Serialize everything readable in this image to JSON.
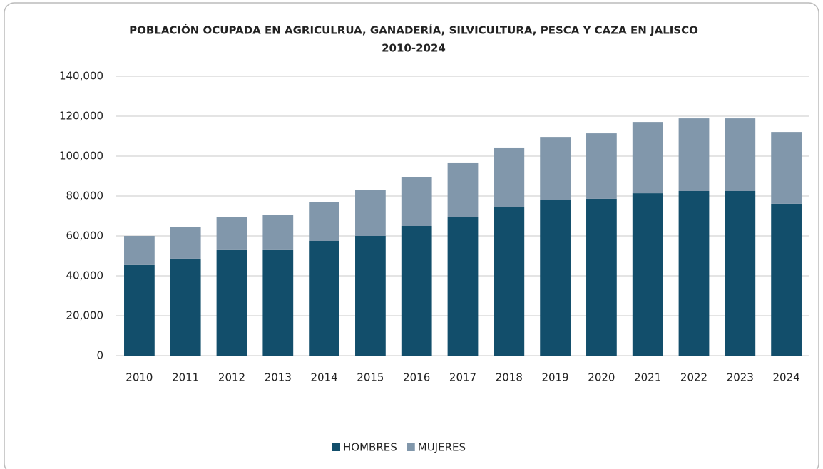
{
  "chart_data": {
    "type": "stacked_bar",
    "title": "POBLACIÓN OCUPADA EN AGRICULRUA, GANADERÍA, SILVICULTURA, PESCA Y CAZA EN JALISCO",
    "subtitle": "2010-2024",
    "categories": [
      "2010",
      "2011",
      "2012",
      "2013",
      "2014",
      "2015",
      "2016",
      "2017",
      "2018",
      "2019",
      "2020",
      "2021",
      "2022",
      "2023",
      "2024"
    ],
    "series": [
      {
        "name": "HOMBRES",
        "color": "#124e6b",
        "values": [
          45400,
          48600,
          52900,
          52900,
          57500,
          60000,
          65000,
          69300,
          74600,
          77900,
          78600,
          81400,
          82500,
          82500,
          76100
        ]
      },
      {
        "name": "MUJERES",
        "color": "#8197ab",
        "values": [
          14600,
          15700,
          16400,
          17800,
          19600,
          22900,
          24600,
          27500,
          29700,
          31700,
          32800,
          35700,
          36400,
          36400,
          36000
        ]
      }
    ],
    "ylim": [
      0,
      140000
    ],
    "yticks": [
      0,
      {
        "value": 20000,
        "label": "20,000"
      },
      {
        "value": 40000,
        "label": "40,000"
      },
      {
        "value": 60000,
        "label": "60,000"
      },
      {
        "value": 80000,
        "label": "80,000"
      },
      {
        "value": 100000,
        "label": "100,000"
      },
      {
        "value": 120000,
        "label": "120,000"
      },
      {
        "value": 140000,
        "label": "140,000"
      }
    ],
    "grid": true,
    "legend": "bottom"
  }
}
